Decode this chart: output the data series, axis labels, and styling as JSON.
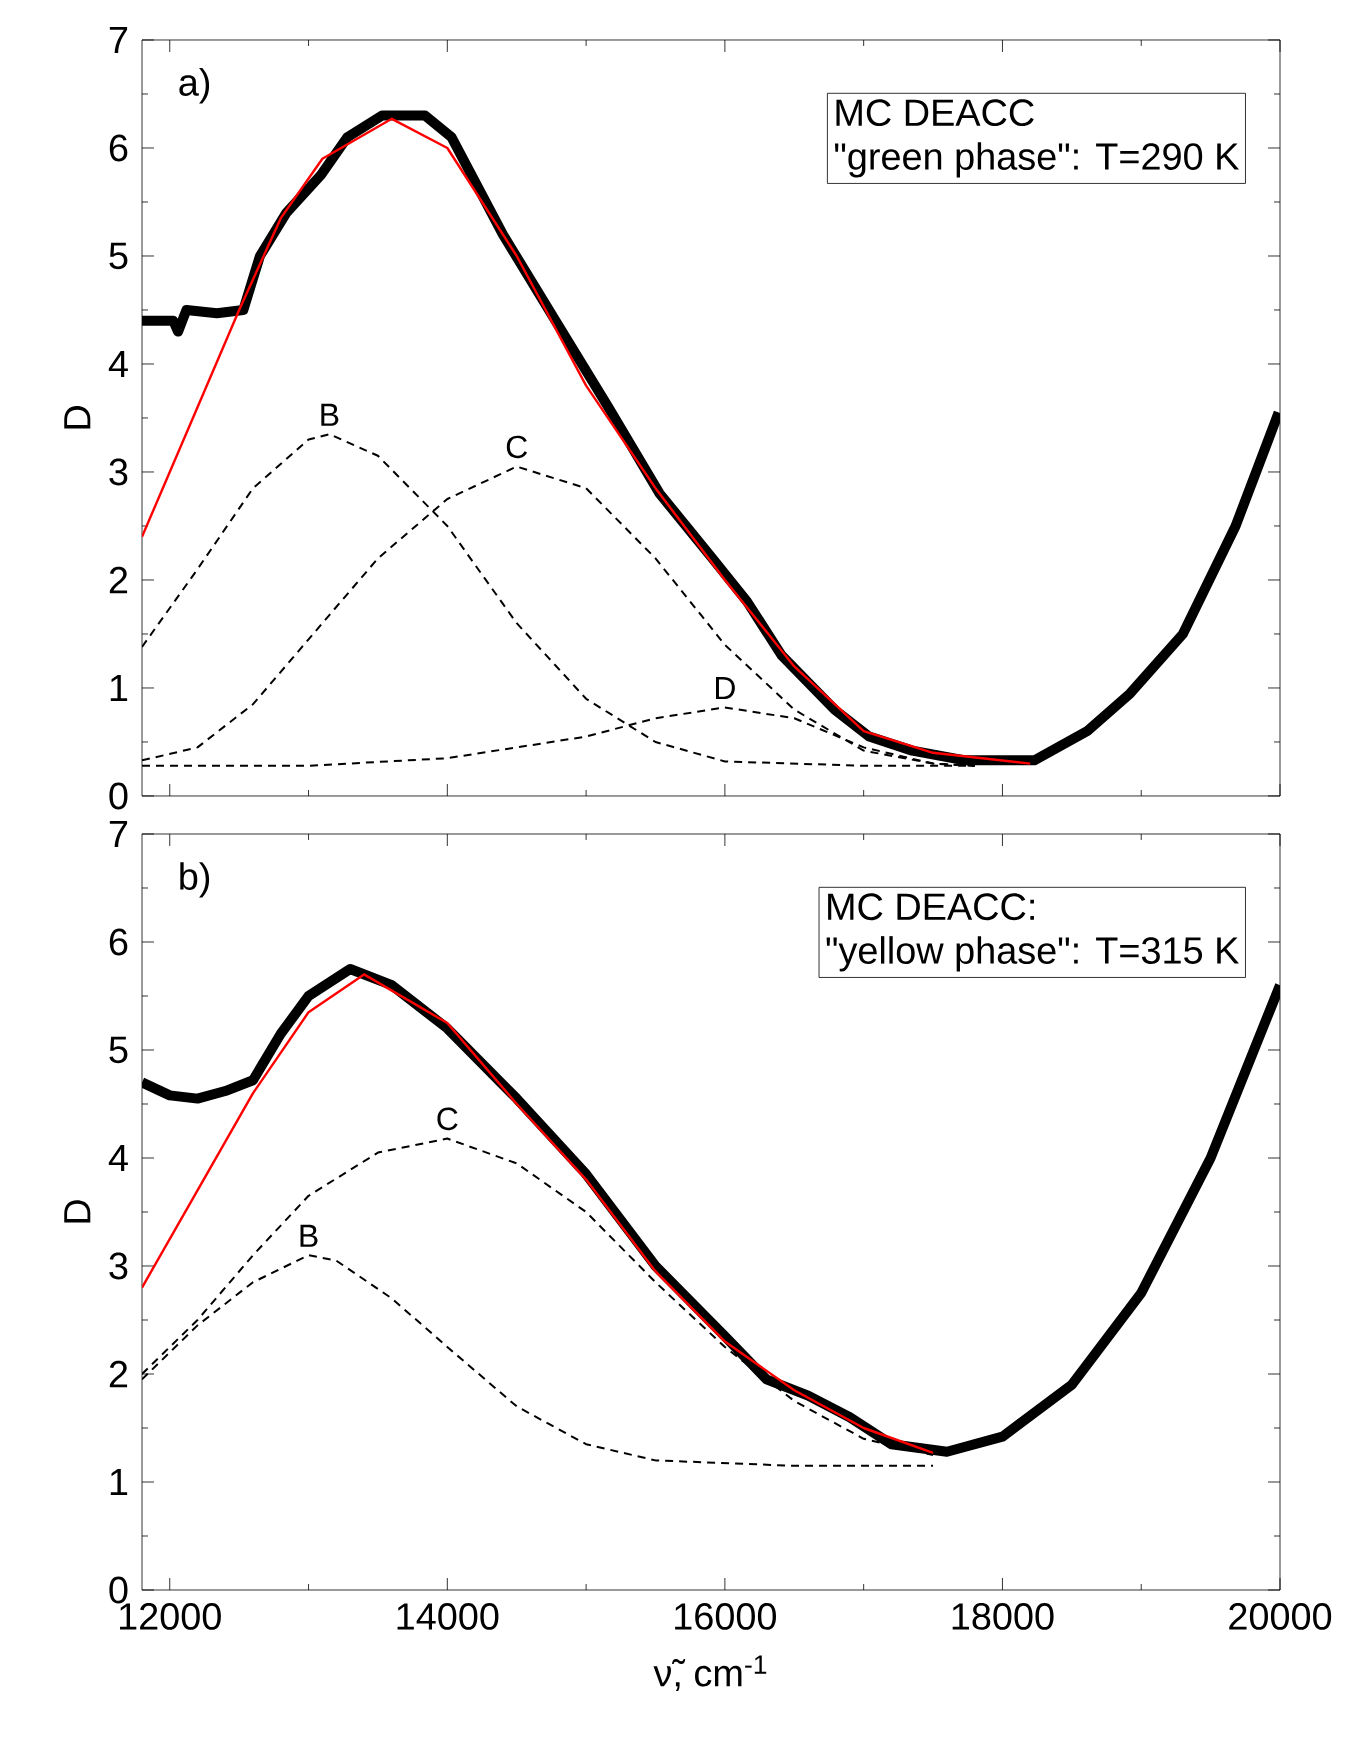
{
  "chart_data": [
    {
      "type": "line",
      "ylabel": "D",
      "xlim": [
        11800,
        20000
      ],
      "ylim": [
        0,
        7
      ],
      "xticks": [
        12000,
        14000,
        16000,
        18000,
        20000
      ],
      "yticks": [
        0,
        1,
        2,
        3,
        4,
        5,
        6,
        7
      ],
      "tick_labels": "y",
      "legend": false,
      "marker": "none",
      "annotations": [
        "a)",
        "MC DEACC",
        "\"green phase\": T=290 K"
      ],
      "series": [
        {
          "color": "#000000",
          "line_style": "solid",
          "x": [
            11800,
            12025,
            12060,
            12120,
            12340,
            12530,
            12650,
            12840,
            13090,
            13280,
            13530,
            13840,
            14030,
            14400,
            14780,
            15160,
            15530,
            15910,
            16160,
            16410,
            16790,
            17040,
            17350,
            17730,
            18230,
            18610,
            18920,
            19300,
            19680,
            19990
          ],
          "values": [
            4.4,
            4.4,
            4.3,
            4.5,
            4.47,
            4.5,
            5.0,
            5.4,
            5.75,
            6.1,
            6.3,
            6.3,
            6.1,
            5.2,
            4.4,
            3.6,
            2.8,
            2.2,
            1.8,
            1.3,
            0.8,
            0.55,
            0.42,
            0.33,
            0.33,
            0.6,
            0.95,
            1.5,
            2.5,
            3.55
          ]
        },
        {
          "color": "#ff0000",
          "line_style": "solid",
          "x": [
            11800,
            12200,
            12500,
            12800,
            13100,
            13600,
            14000,
            14500,
            15000,
            15500,
            16000,
            16500,
            17000,
            17500,
            18200
          ],
          "values": [
            2.4,
            3.6,
            4.5,
            5.35,
            5.9,
            6.27,
            6.0,
            5.0,
            3.8,
            2.85,
            2.0,
            1.2,
            0.6,
            0.4,
            0.3
          ]
        },
        {
          "name": "B",
          "color": "#000000",
          "line_style": "dashed",
          "x": [
            11800,
            12200,
            12600,
            13000,
            13150,
            13500,
            14000,
            14500,
            15000,
            15500,
            16000,
            17000,
            17800
          ],
          "values": [
            1.38,
            2.1,
            2.85,
            3.3,
            3.35,
            3.15,
            2.5,
            1.6,
            0.9,
            0.5,
            0.32,
            0.28,
            0.28
          ]
        },
        {
          "name": "C",
          "color": "#000000",
          "line_style": "dashed",
          "x": [
            11800,
            12200,
            12600,
            13000,
            13500,
            14000,
            14500,
            15000,
            15500,
            16000,
            16500,
            17000,
            17500,
            17800
          ],
          "values": [
            0.33,
            0.45,
            0.85,
            1.45,
            2.2,
            2.75,
            3.05,
            2.85,
            2.2,
            1.4,
            0.8,
            0.42,
            0.3,
            0.28
          ]
        },
        {
          "name": "D",
          "color": "#000000",
          "line_style": "dashed",
          "x": [
            11800,
            13000,
            14000,
            15000,
            15500,
            16000,
            16500,
            17000,
            17500,
            17800
          ],
          "values": [
            0.28,
            0.28,
            0.35,
            0.55,
            0.72,
            0.82,
            0.72,
            0.45,
            0.3,
            0.28
          ]
        }
      ]
    },
    {
      "type": "line",
      "xlabel": "ν̃, cm$^{-1}$",
      "ylabel": "D",
      "xlim": [
        11800,
        20000
      ],
      "ylim": [
        0,
        7
      ],
      "xticks": [
        12000,
        14000,
        16000,
        18000,
        20000
      ],
      "yticks": [
        0,
        1,
        2,
        3,
        4,
        5,
        6,
        7
      ],
      "legend": false,
      "marker": "none",
      "annotations": [
        "b)",
        "MC DEACC:",
        "\"yellow phase\": T=315 K"
      ],
      "series": [
        {
          "color": "#000000",
          "line_style": "solid",
          "x": [
            11800,
            12000,
            12200,
            12400,
            12600,
            12800,
            13000,
            13300,
            13600,
            14000,
            14500,
            15000,
            15500,
            16000,
            16300,
            16600,
            16900,
            17200,
            17600,
            18000,
            18500,
            19000,
            19500,
            20000
          ],
          "values": [
            4.7,
            4.58,
            4.55,
            4.62,
            4.72,
            5.15,
            5.5,
            5.75,
            5.6,
            5.2,
            4.55,
            3.85,
            3.0,
            2.35,
            1.95,
            1.8,
            1.6,
            1.35,
            1.28,
            1.42,
            1.9,
            2.75,
            4.0,
            5.6
          ]
        },
        {
          "color": "#ff0000",
          "line_style": "solid",
          "x": [
            11800,
            12200,
            12600,
            13000,
            13400,
            14000,
            14500,
            15000,
            15500,
            16000,
            16500,
            17000,
            17500
          ],
          "values": [
            2.8,
            3.7,
            4.6,
            5.35,
            5.7,
            5.25,
            4.5,
            3.8,
            2.95,
            2.3,
            1.85,
            1.5,
            1.27
          ]
        },
        {
          "name": "B",
          "color": "#000000",
          "line_style": "dashed",
          "x": [
            11800,
            12200,
            12600,
            13000,
            13200,
            13600,
            14000,
            14500,
            15000,
            15500,
            16500,
            17500
          ],
          "values": [
            1.95,
            2.45,
            2.85,
            3.1,
            3.05,
            2.7,
            2.25,
            1.7,
            1.35,
            1.2,
            1.15,
            1.15
          ]
        },
        {
          "name": "C",
          "color": "#000000",
          "line_style": "dashed",
          "x": [
            11800,
            12200,
            12600,
            13000,
            13500,
            14000,
            14500,
            15000,
            15500,
            16000,
            16500,
            17000,
            17500
          ],
          "values": [
            2.0,
            2.5,
            3.1,
            3.65,
            4.05,
            4.18,
            3.95,
            3.5,
            2.85,
            2.25,
            1.75,
            1.4,
            1.25
          ]
        }
      ]
    }
  ]
}
